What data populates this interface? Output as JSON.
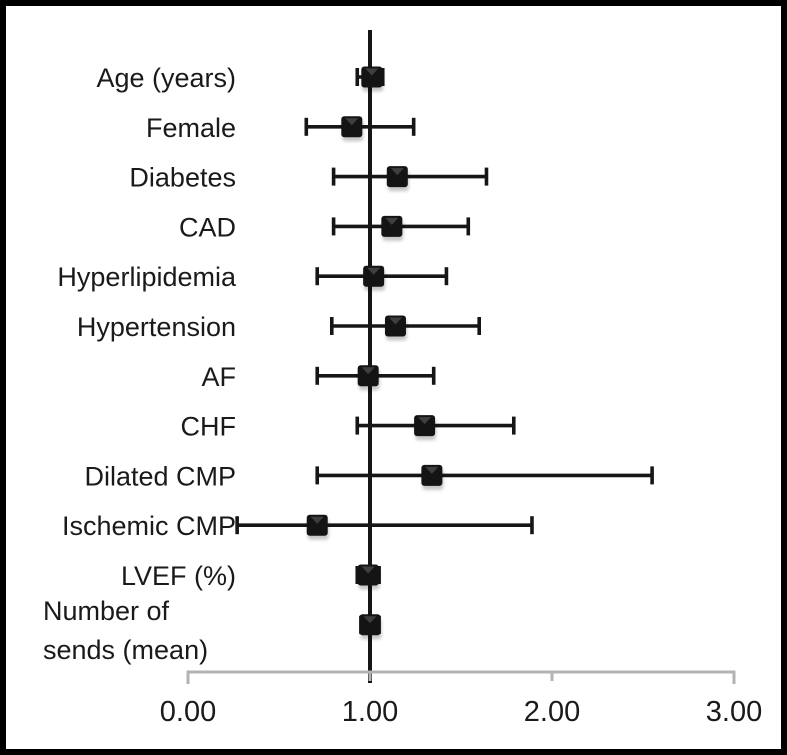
{
  "figure": {
    "background": "#ffffff",
    "frame_color": "#000000"
  },
  "chart_data": {
    "type": "scatter",
    "chart_style": "forest-plot",
    "title": "",
    "xlabel": "",
    "ylabel": "",
    "xlim": [
      0,
      3
    ],
    "grid": false,
    "legend": "none",
    "reference_line_x": 1.0,
    "x_ticks": [
      {
        "value": 0,
        "label": "0.00"
      },
      {
        "value": 1,
        "label": "1.00"
      },
      {
        "value": 2,
        "label": "2.00"
      },
      {
        "value": 3,
        "label": "3.00"
      }
    ],
    "rows": [
      {
        "label": "Age (years)",
        "estimate": 1.01,
        "ci_low": 0.93,
        "ci_high": 1.07
      },
      {
        "label": "Female",
        "estimate": 0.9,
        "ci_low": 0.65,
        "ci_high": 1.24
      },
      {
        "label": "Diabetes",
        "estimate": 1.15,
        "ci_low": 0.8,
        "ci_high": 1.64
      },
      {
        "label": "CAD",
        "estimate": 1.12,
        "ci_low": 0.8,
        "ci_high": 1.54
      },
      {
        "label": "Hyperlipidemia",
        "estimate": 1.02,
        "ci_low": 0.71,
        "ci_high": 1.42
      },
      {
        "label": "Hypertension",
        "estimate": 1.14,
        "ci_low": 0.79,
        "ci_high": 1.6
      },
      {
        "label": "AF",
        "estimate": 0.99,
        "ci_low": 0.71,
        "ci_high": 1.35
      },
      {
        "label": "CHF",
        "estimate": 1.3,
        "ci_low": 0.93,
        "ci_high": 1.79
      },
      {
        "label": "Dilated CMP",
        "estimate": 1.34,
        "ci_low": 0.71,
        "ci_high": 2.55
      },
      {
        "label": "Ischemic CMP",
        "estimate": 0.71,
        "ci_low": 0.27,
        "ci_high": 1.89
      },
      {
        "label": "LVEF (%)",
        "estimate": 0.99,
        "ci_low": 0.93,
        "ci_high": 1.05
      },
      {
        "label": "Number of\nsends (mean)",
        "estimate": 1.0,
        "ci_low": 0.95,
        "ci_high": 1.05
      }
    ],
    "colors": {
      "marker": "#141414",
      "marker_bevel": "#3f3f3f",
      "ci_line": "#161616",
      "reference_line": "#161616",
      "axis_line": "#b3b3b3",
      "text": "#1a1a1a"
    }
  }
}
